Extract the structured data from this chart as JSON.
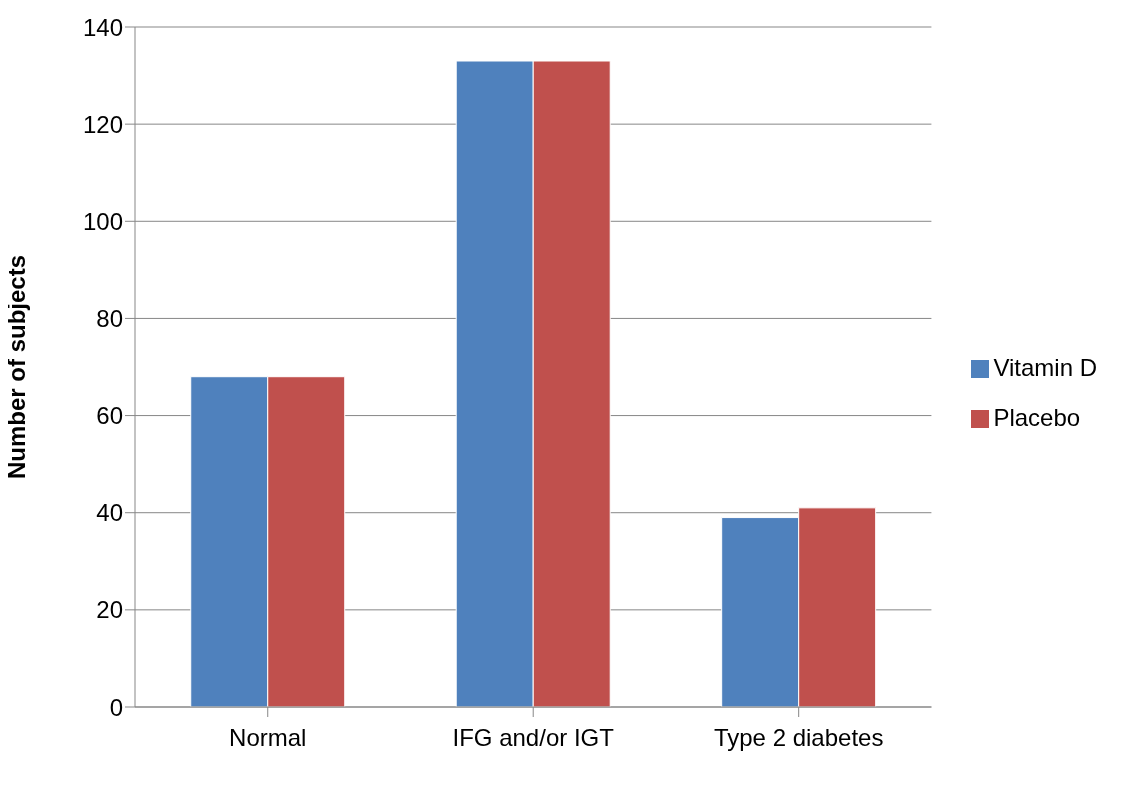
{
  "chart_data": {
    "type": "bar",
    "ylabel": "Number of subjects",
    "categories": [
      "Normal",
      "IFG and/or IGT",
      "Type 2 diabetes"
    ],
    "series": [
      {
        "name": "Vitamin D",
        "color": "#4f81bd",
        "values": [
          68,
          133,
          39
        ]
      },
      {
        "name": "Placebo",
        "color": "#c0504d",
        "values": [
          68,
          133,
          41
        ]
      }
    ],
    "ylim": [
      0,
      140
    ],
    "yticks": [
      0,
      20,
      40,
      60,
      80,
      100,
      120,
      140
    ],
    "grid": "y",
    "legend": "right"
  }
}
